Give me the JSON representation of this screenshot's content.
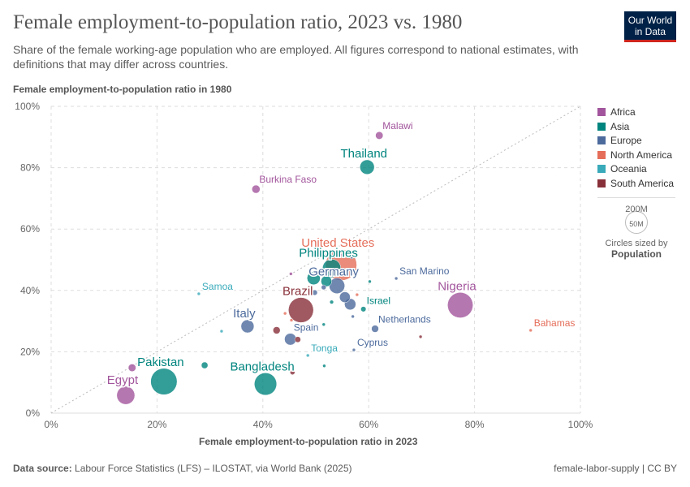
{
  "title": "Female employment-to-population ratio, 2023 vs. 1980",
  "subtitle": "Share of the female working-age population who are employed. All figures correspond to national estimates, with definitions that may differ across countries.",
  "logo": {
    "line1": "Our World",
    "line2": "in Data"
  },
  "footer": {
    "source_label": "Data source:",
    "source": "Labour Force Statistics (LFS) – ILOSTAT, via World Bank (2025)",
    "right": "female-labor-supply | CC BY"
  },
  "legend": {
    "items": [
      {
        "name": "Africa",
        "color": "#a2559c"
      },
      {
        "name": "Asia",
        "color": "#00847e"
      },
      {
        "name": "Europe",
        "color": "#4c6a9c"
      },
      {
        "name": "North America",
        "color": "#e56e5a"
      },
      {
        "name": "Oceania",
        "color": "#38aaba"
      },
      {
        "name": "South America",
        "color": "#883039"
      }
    ],
    "size_big": "200M",
    "size_small": "50M",
    "size_caption": "Circles sized by",
    "size_var": "Population"
  },
  "chart_data": {
    "type": "scatter",
    "xlabel": "Female employment-to-population ratio in 2023",
    "ylabel": "Female employment-to-population ratio in 1980",
    "xlim": [
      0,
      100
    ],
    "ylim": [
      0,
      100
    ],
    "xticks": [
      "0%",
      "20%",
      "40%",
      "60%",
      "80%",
      "100%"
    ],
    "yticks": [
      "0%",
      "20%",
      "40%",
      "60%",
      "80%",
      "100%"
    ],
    "grid": true,
    "reference_line": "y = x",
    "legend_position": "right",
    "points": [
      {
        "label": "Malawi",
        "region": "Africa",
        "x": 62,
        "y": 90.5,
        "pop": 20
      },
      {
        "label": "Thailand",
        "region": "Asia",
        "x": 59.7,
        "y": 80.2,
        "pop": 72
      },
      {
        "label": "Burkina Faso",
        "region": "Africa",
        "x": 38.7,
        "y": 73,
        "pop": 23
      },
      {
        "label": "United States",
        "region": "North America",
        "x": 54.8,
        "y": 48.3,
        "pop": 335
      },
      {
        "label": "Philippines",
        "region": "Asia",
        "x": 53,
        "y": 47.2,
        "pop": 115
      },
      {
        "label": "San Marino",
        "region": "Europe",
        "x": 65.2,
        "y": 43.9,
        "pop": 0.03
      },
      {
        "label": "Germany",
        "region": "Europe",
        "x": 54,
        "y": 41.5,
        "pop": 84
      },
      {
        "label": "Nigeria",
        "region": "Africa",
        "x": 77.3,
        "y": 35.2,
        "pop": 223
      },
      {
        "label": "Samoa",
        "region": "Oceania",
        "x": 27.9,
        "y": 38.9,
        "pop": 0.2
      },
      {
        "label": "Brazil",
        "region": "South America",
        "x": 47.2,
        "y": 33.6,
        "pop": 216
      },
      {
        "label": "Italy",
        "region": "Europe",
        "x": 37.1,
        "y": 28.3,
        "pop": 59
      },
      {
        "label": "Israel",
        "region": "Asia",
        "x": 59,
        "y": 33.9,
        "pop": 9.7
      },
      {
        "label": "Netherlands",
        "region": "Europe",
        "x": 61.2,
        "y": 27.5,
        "pop": 17.9
      },
      {
        "label": "Bahamas",
        "region": "North America",
        "x": 90.6,
        "y": 27,
        "pop": 0.4
      },
      {
        "label": "Spain",
        "region": "Europe",
        "x": 45.2,
        "y": 24.1,
        "pop": 48
      },
      {
        "label": "Cyprus",
        "region": "Europe",
        "x": 57.2,
        "y": 20.6,
        "pop": 1.3
      },
      {
        "label": "Tonga",
        "region": "Oceania",
        "x": 48.5,
        "y": 18.8,
        "pop": 0.1
      },
      {
        "label": "Pakistan",
        "region": "Asia",
        "x": 21.3,
        "y": 10.3,
        "pop": 240
      },
      {
        "label": "Bangladesh",
        "region": "Asia",
        "x": 40.5,
        "y": 9.5,
        "pop": 172
      },
      {
        "label": "Egypt",
        "region": "Africa",
        "x": 14.1,
        "y": 5.8,
        "pop": 112
      },
      {
        "label": "",
        "region": "Africa",
        "x": 15.3,
        "y": 14.8,
        "pop": 20
      },
      {
        "label": "",
        "region": "Asia",
        "x": 29,
        "y": 15.6,
        "pop": 15
      },
      {
        "label": "",
        "region": "Oceania",
        "x": 32.2,
        "y": 26.7,
        "pop": 1
      },
      {
        "label": "",
        "region": "South America",
        "x": 42.6,
        "y": 27,
        "pop": 18
      },
      {
        "label": "",
        "region": "South America",
        "x": 46.6,
        "y": 24,
        "pop": 12
      },
      {
        "label": "",
        "region": "South America",
        "x": 69.8,
        "y": 24.9,
        "pop": 3
      },
      {
        "label": "",
        "region": "South America",
        "x": 45.6,
        "y": 13.3,
        "pop": 8
      },
      {
        "label": "",
        "region": "Asia",
        "x": 51.6,
        "y": 15.4,
        "pop": 0.5
      },
      {
        "label": "",
        "region": "North America",
        "x": 44.2,
        "y": 32.5,
        "pop": 1
      },
      {
        "label": "",
        "region": "North America",
        "x": 45.4,
        "y": 30.3,
        "pop": 1
      },
      {
        "label": "",
        "region": "Africa",
        "x": 45.3,
        "y": 45.4,
        "pop": 1
      },
      {
        "label": "",
        "region": "North America",
        "x": 57.8,
        "y": 38.6,
        "pop": 1
      },
      {
        "label": "",
        "region": "Asia",
        "x": 60.2,
        "y": 42.9,
        "pop": 1
      },
      {
        "label": "",
        "region": "Europe",
        "x": 57,
        "y": 31.5,
        "pop": 1
      },
      {
        "label": "",
        "region": "Asia",
        "x": 51.5,
        "y": 28.9,
        "pop": 1
      },
      {
        "label": "",
        "region": "Asia",
        "x": 49.6,
        "y": 44,
        "pop": 60
      },
      {
        "label": "",
        "region": "Asia",
        "x": 52,
        "y": 43,
        "pop": 40
      },
      {
        "label": "",
        "region": "Europe",
        "x": 49.8,
        "y": 39.3,
        "pop": 10
      },
      {
        "label": "",
        "region": "Europe",
        "x": 55.5,
        "y": 37.8,
        "pop": 40
      },
      {
        "label": "",
        "region": "Europe",
        "x": 56.5,
        "y": 35.5,
        "pop": 45
      },
      {
        "label": "",
        "region": "Asia",
        "x": 53,
        "y": 36.2,
        "pop": 5
      },
      {
        "label": "",
        "region": "Europe",
        "x": 51.5,
        "y": 41,
        "pop": 8
      },
      {
        "label": "",
        "region": "Africa",
        "x": 55,
        "y": 51.5,
        "pop": 3
      },
      {
        "label": "",
        "region": "Europe",
        "x": 56.8,
        "y": 50.8,
        "pop": 3
      },
      {
        "label": "",
        "region": "North America",
        "x": 57.5,
        "y": 46.5,
        "pop": 6
      }
    ]
  }
}
